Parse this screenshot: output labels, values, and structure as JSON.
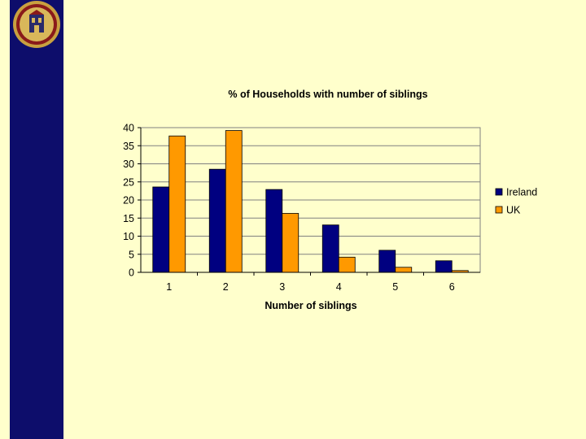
{
  "chart_data": {
    "type": "bar",
    "title": "% of Households with number of siblings",
    "xlabel": "Number of siblings",
    "ylabel": "",
    "categories": [
      "1",
      "2",
      "3",
      "4",
      "5",
      "6"
    ],
    "series": [
      {
        "name": "Ireland",
        "color": "#000080",
        "values": [
          23.6,
          28.5,
          22.9,
          13.1,
          6.1,
          3.2
        ]
      },
      {
        "name": "UK",
        "color": "#FF9900",
        "values": [
          37.7,
          39.2,
          16.3,
          4.2,
          1.4,
          0.5
        ]
      }
    ],
    "ylim": [
      0,
      40
    ],
    "yticks": [
      0,
      5,
      10,
      15,
      20,
      25,
      30,
      35,
      40
    ],
    "grid": true,
    "legend": "right"
  },
  "colors": {
    "background": "#FFFFCC",
    "sidebar": "#0D0D6B",
    "plot_area": "#FFFFCC"
  },
  "seal": {
    "icon": "university-seal-icon"
  }
}
